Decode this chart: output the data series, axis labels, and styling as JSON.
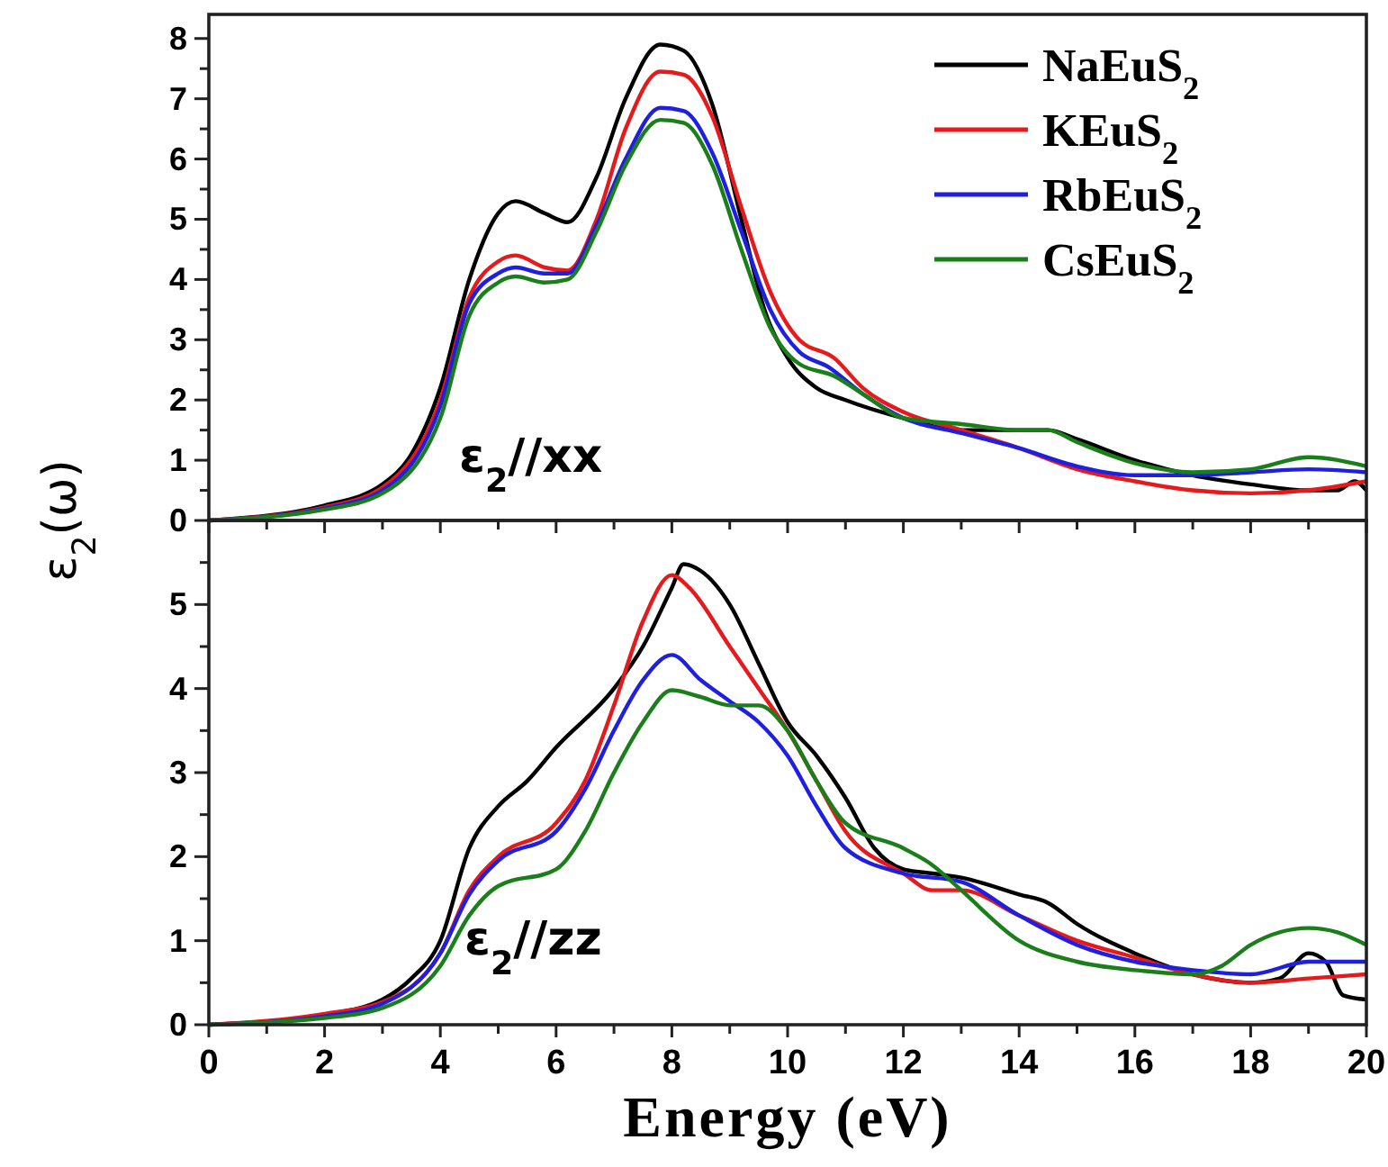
{
  "chart_data": [
    {
      "type": "line",
      "ylabel": "ε$_{2}$(ω)",
      "annotations": [
        "ε$_{2}$//xx"
      ],
      "legend": "top right",
      "marker": "none",
      "line_style": "solid",
      "grid": false,
      "tick_labels": "y",
      "xlim": [
        0,
        20
      ],
      "ylim": [
        0,
        8.4
      ],
      "xticks": [
        0,
        {
          "value": 1,
          "label": null
        },
        2,
        {
          "value": 3,
          "label": null
        },
        4,
        {
          "value": 5,
          "label": null
        },
        6,
        {
          "value": 7,
          "label": null
        },
        8,
        {
          "value": 9,
          "label": null
        },
        10,
        {
          "value": 11,
          "label": null
        },
        12,
        {
          "value": 13,
          "label": null
        },
        14,
        {
          "value": 15,
          "label": null
        },
        16,
        {
          "value": 17,
          "label": null
        },
        18,
        {
          "value": 19,
          "label": null
        },
        20
      ],
      "yticks": [
        0,
        {
          "value": 0.5,
          "label": null
        },
        1,
        {
          "value": 1.5,
          "label": null
        },
        2,
        {
          "value": 2.5,
          "label": null
        },
        3,
        {
          "value": 3.5,
          "label": null
        },
        4,
        {
          "value": 4.5,
          "label": null
        },
        5,
        {
          "value": 5.5,
          "label": null
        },
        6,
        {
          "value": 6.5,
          "label": null
        },
        7,
        {
          "value": 7.5,
          "label": null
        },
        8
      ],
      "series": [
        {
          "name": "NaEuS$_{2}$",
          "color": "#000000",
          "x": [
            0,
            2,
            3,
            3.5,
            4,
            4.5,
            5,
            5.3,
            5.8,
            6.2,
            6.7,
            7.2,
            7.8,
            8.2,
            8.7,
            9.2,
            9.6,
            10,
            10.5,
            11,
            12,
            13,
            14,
            14.5,
            15,
            16,
            17,
            18,
            19,
            19.5,
            19.8,
            20
          ],
          "values": [
            0,
            0.25,
            0.6,
            1.1,
            2.2,
            4.0,
            5.1,
            5.3,
            5.1,
            4.95,
            5.7,
            7.0,
            7.9,
            7.8,
            6.9,
            5.0,
            3.5,
            2.7,
            2.2,
            2.0,
            1.7,
            1.5,
            1.5,
            1.5,
            1.35,
            1.0,
            0.75,
            0.6,
            0.5,
            0.5,
            0.65,
            0.5
          ]
        },
        {
          "name": "KEuS$_{2}$",
          "color": "#e41a1c",
          "x": [
            0,
            2,
            3,
            4,
            4.5,
            5,
            5.3,
            5.8,
            6.2,
            6.7,
            7.2,
            7.8,
            8.2,
            8.7,
            9.2,
            9.7,
            10.2,
            10.8,
            11.3,
            12,
            13,
            14,
            15,
            16,
            17,
            18,
            19,
            20
          ],
          "values": [
            0,
            0.22,
            0.55,
            2.0,
            3.7,
            4.3,
            4.4,
            4.2,
            4.15,
            5.0,
            6.5,
            7.45,
            7.4,
            6.7,
            5.2,
            3.8,
            3.0,
            2.7,
            2.2,
            1.8,
            1.5,
            1.2,
            0.85,
            0.65,
            0.5,
            0.45,
            0.5,
            0.65
          ]
        },
        {
          "name": "RbEuS$_{2}$",
          "color": "#1f1fe0",
          "x": [
            0,
            2,
            3,
            4,
            4.5,
            5,
            5.3,
            5.8,
            6.2,
            6.7,
            7.2,
            7.8,
            8.2,
            8.7,
            9.2,
            9.7,
            10.2,
            10.7,
            11.3,
            12,
            13,
            14,
            15,
            16,
            17,
            18,
            19,
            20
          ],
          "values": [
            0,
            0.2,
            0.5,
            1.9,
            3.6,
            4.1,
            4.2,
            4.1,
            4.1,
            4.9,
            6.0,
            6.85,
            6.8,
            6.1,
            4.8,
            3.5,
            2.8,
            2.55,
            2.1,
            1.7,
            1.45,
            1.2,
            0.9,
            0.75,
            0.75,
            0.8,
            0.85,
            0.8
          ]
        },
        {
          "name": "CsEuS$_{2}$",
          "color": "#1a7f1a",
          "x": [
            0,
            2,
            3,
            4,
            4.5,
            5,
            5.3,
            5.8,
            6.2,
            6.7,
            7.2,
            7.8,
            8.2,
            8.7,
            9.2,
            9.7,
            10.2,
            10.8,
            11.3,
            12,
            13,
            14,
            14.5,
            15,
            16,
            17,
            18,
            19,
            20
          ],
          "values": [
            0,
            0.18,
            0.45,
            1.7,
            3.4,
            3.95,
            4.05,
            3.95,
            4.0,
            4.8,
            5.9,
            6.65,
            6.6,
            5.9,
            4.5,
            3.2,
            2.6,
            2.4,
            2.1,
            1.7,
            1.6,
            1.5,
            1.5,
            1.3,
            0.95,
            0.8,
            0.85,
            1.05,
            0.9
          ]
        }
      ]
    },
    {
      "type": "line",
      "xlabel": "Energy (eV)",
      "annotations": [
        "ε$_{2}$//zz"
      ],
      "marker": "none",
      "line_style": "solid",
      "grid": false,
      "xlim": [
        0,
        20
      ],
      "ylim": [
        0,
        6
      ],
      "xticks": [
        0,
        {
          "value": 1,
          "label": null
        },
        2,
        {
          "value": 3,
          "label": null
        },
        4,
        {
          "value": 5,
          "label": null
        },
        6,
        {
          "value": 7,
          "label": null
        },
        8,
        {
          "value": 9,
          "label": null
        },
        10,
        {
          "value": 11,
          "label": null
        },
        12,
        {
          "value": 13,
          "label": null
        },
        14,
        {
          "value": 15,
          "label": null
        },
        16,
        {
          "value": 17,
          "label": null
        },
        18,
        {
          "value": 19,
          "label": null
        },
        20
      ],
      "yticks": [
        0,
        {
          "value": 0.5,
          "label": null
        },
        1,
        {
          "value": 1.5,
          "label": null
        },
        2,
        {
          "value": 2.5,
          "label": null
        },
        3,
        {
          "value": 3.5,
          "label": null
        },
        4,
        {
          "value": 4.5,
          "label": null
        },
        5,
        {
          "value": 5.5,
          "label": null
        }
      ],
      "series": [
        {
          "color": "#000000",
          "x": [
            0,
            2,
            3,
            3.5,
            4,
            4.5,
            5,
            5.5,
            6,
            7,
            7.5,
            8,
            8.2,
            8.5,
            9,
            9.5,
            10,
            10.5,
            11,
            11.5,
            12,
            12.5,
            13,
            14,
            14.5,
            15,
            16,
            17,
            18,
            18.5,
            19,
            19.3,
            19.6,
            20
          ],
          "values": [
            0,
            0.12,
            0.3,
            0.55,
            1.0,
            2.1,
            2.6,
            2.9,
            3.3,
            4.0,
            4.5,
            5.2,
            5.48,
            5.4,
            5.0,
            4.3,
            3.6,
            3.2,
            2.7,
            2.1,
            1.85,
            1.8,
            1.75,
            1.55,
            1.45,
            1.2,
            0.85,
            0.6,
            0.5,
            0.55,
            0.85,
            0.75,
            0.35,
            0.3
          ]
        },
        {
          "color": "#e41a1c",
          "x": [
            0,
            2,
            3,
            4,
            4.5,
            5,
            6,
            6.5,
            7,
            7.5,
            8,
            8.3,
            9,
            9.5,
            10,
            10.5,
            11,
            12,
            12.5,
            13,
            14,
            15,
            16,
            17,
            18,
            19,
            20
          ],
          "values": [
            0,
            0.13,
            0.27,
            0.85,
            1.6,
            2.0,
            2.4,
            2.9,
            3.8,
            4.8,
            5.35,
            5.2,
            4.5,
            4.0,
            3.5,
            2.9,
            2.3,
            1.8,
            1.6,
            1.6,
            1.3,
            1.0,
            0.8,
            0.6,
            0.5,
            0.55,
            0.6
          ]
        },
        {
          "color": "#1f1fe0",
          "x": [
            0,
            2,
            3,
            4,
            4.5,
            5,
            6,
            6.5,
            7,
            7.5,
            8,
            8.5,
            9,
            9.5,
            10,
            10.5,
            11,
            12,
            13,
            14,
            15,
            16,
            17,
            18,
            19,
            20
          ],
          "values": [
            0,
            0.1,
            0.25,
            0.85,
            1.55,
            1.95,
            2.3,
            2.8,
            3.5,
            4.1,
            4.4,
            4.1,
            3.85,
            3.6,
            3.2,
            2.6,
            2.1,
            1.8,
            1.7,
            1.3,
            0.95,
            0.75,
            0.65,
            0.6,
            0.75,
            0.75
          ]
        },
        {
          "color": "#1a7f1a",
          "x": [
            0,
            2,
            3,
            4,
            4.5,
            5,
            6,
            6.5,
            7,
            7.5,
            8,
            8.5,
            9,
            9.5,
            10,
            10.5,
            11,
            12,
            12.5,
            13,
            14,
            15,
            16,
            17,
            17.5,
            18,
            19,
            19.5,
            20
          ],
          "values": [
            0,
            0.08,
            0.2,
            0.7,
            1.3,
            1.65,
            1.85,
            2.3,
            3.0,
            3.6,
            3.98,
            3.9,
            3.8,
            3.8,
            3.5,
            2.9,
            2.4,
            2.1,
            1.9,
            1.6,
            1.0,
            0.75,
            0.65,
            0.6,
            0.7,
            0.95,
            1.15,
            1.1,
            0.95
          ]
        }
      ]
    }
  ]
}
